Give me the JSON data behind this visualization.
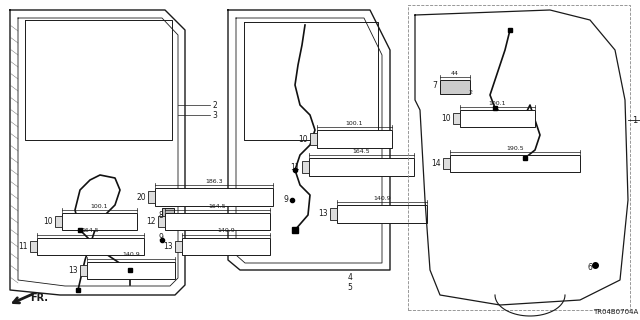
{
  "bg_color": "#ffffff",
  "diagram_code": "TR04B0704A",
  "lc": "#1a1a1a",
  "gray": "#888888",
  "lightgray": "#cccccc"
}
